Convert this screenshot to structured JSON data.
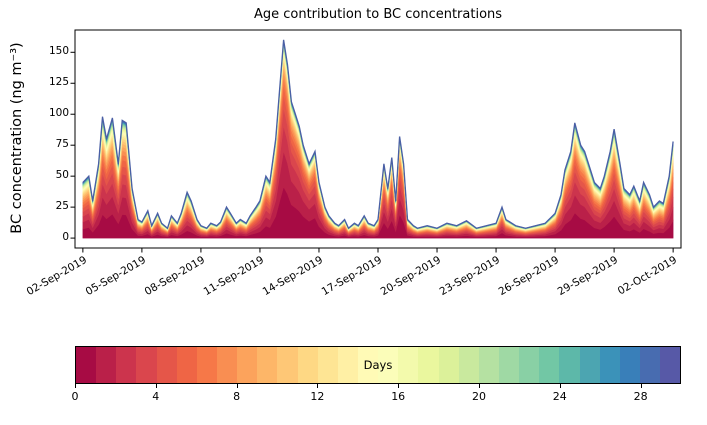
{
  "figure": {
    "background": "#ffffff"
  },
  "chart_data": {
    "type": "area",
    "subtype": "stacked-area-by-age",
    "title": "Age contribution to BC concentrations",
    "xlabel": "",
    "ylabel": "BC concentration (ng m⁻³)",
    "grid": false,
    "legend": "colorbar",
    "ylim": [
      -8,
      168
    ],
    "xlim_days": [
      1.6,
      32.4
    ],
    "y_ticks": [
      0,
      25,
      50,
      75,
      100,
      125,
      150
    ],
    "x_tick_days": [
      2,
      5,
      8,
      11,
      14,
      17,
      20,
      23,
      26,
      29,
      32
    ],
    "x_tick_labels": [
      "02-Sep-2019",
      "05-Sep-2019",
      "08-Sep-2019",
      "11-Sep-2019",
      "14-Sep-2019",
      "17-Sep-2019",
      "20-Sep-2019",
      "23-Sep-2019",
      "26-Sep-2019",
      "29-Sep-2019",
      "02-Oct-2019"
    ],
    "stack_note": "Total BC concentration stacked by air-mass age in days (0 = freshest at bottom, ~30 = oldest at top); age share modeled from aged_fraction mixing of two exponential age profiles",
    "age_layers": 30,
    "age_profile": {
      "fresh_tau_days": 2.5,
      "aged_tau_days": 10
    },
    "palette_spectral": [
      "#9e0142",
      "#d53e4f",
      "#f46d43",
      "#fdae61",
      "#fee08b",
      "#ffffbf",
      "#e6f598",
      "#abdda4",
      "#66c2a5",
      "#3288bd",
      "#5e4fa2"
    ],
    "outline_color": "#4a5fa5",
    "axis_color": "#000000",
    "t_days_september": [
      2.0,
      2.3,
      2.5,
      2.8,
      3.0,
      3.2,
      3.5,
      3.8,
      4.0,
      4.2,
      4.5,
      4.8,
      5.0,
      5.3,
      5.5,
      5.8,
      6.0,
      6.3,
      6.5,
      6.8,
      7.0,
      7.3,
      7.5,
      7.8,
      8.0,
      8.3,
      8.5,
      8.8,
      9.0,
      9.3,
      9.5,
      9.8,
      10.0,
      10.3,
      10.5,
      10.8,
      11.0,
      11.3,
      11.5,
      11.8,
      12.0,
      12.2,
      12.4,
      12.6,
      12.8,
      13.0,
      13.2,
      13.5,
      13.8,
      14.0,
      14.3,
      14.5,
      14.8,
      15.0,
      15.3,
      15.5,
      15.8,
      16.0,
      16.3,
      16.5,
      16.8,
      17.0,
      17.3,
      17.5,
      17.7,
      17.9,
      18.1,
      18.3,
      18.5,
      18.8,
      19.0,
      19.5,
      20.0,
      20.5,
      21.0,
      21.5,
      22.0,
      22.5,
      23.0,
      23.3,
      23.5,
      24.0,
      24.5,
      25.0,
      25.5,
      26.0,
      26.3,
      26.5,
      26.8,
      27.0,
      27.3,
      27.5,
      27.8,
      28.0,
      28.3,
      28.5,
      28.8,
      29.0,
      29.3,
      29.5,
      29.8,
      30.0,
      30.3,
      30.5,
      30.8,
      31.0,
      31.3,
      31.5,
      31.8,
      32.0
    ],
    "total_ng_m3": [
      45,
      50,
      30,
      60,
      98,
      80,
      97,
      60,
      95,
      93,
      40,
      15,
      13,
      22,
      10,
      20,
      12,
      8,
      18,
      12,
      20,
      37,
      30,
      15,
      10,
      8,
      12,
      10,
      13,
      25,
      20,
      12,
      15,
      12,
      18,
      25,
      30,
      50,
      45,
      80,
      120,
      160,
      140,
      110,
      100,
      90,
      75,
      60,
      70,
      45,
      25,
      18,
      12,
      10,
      15,
      8,
      12,
      10,
      18,
      12,
      10,
      15,
      60,
      40,
      65,
      30,
      82,
      60,
      15,
      10,
      8,
      10,
      8,
      12,
      10,
      14,
      8,
      10,
      12,
      25,
      15,
      10,
      8,
      10,
      12,
      20,
      35,
      55,
      70,
      93,
      75,
      70,
      55,
      45,
      40,
      50,
      70,
      88,
      60,
      40,
      35,
      42,
      30,
      45,
      35,
      25,
      30,
      28,
      50,
      78
    ],
    "aged_fraction": [
      0.45,
      0.4,
      0.45,
      0.35,
      0.3,
      0.3,
      0.28,
      0.3,
      0.28,
      0.28,
      0.35,
      0.55,
      0.55,
      0.5,
      0.6,
      0.5,
      0.55,
      0.6,
      0.5,
      0.55,
      0.5,
      0.45,
      0.45,
      0.55,
      0.6,
      0.6,
      0.55,
      0.6,
      0.55,
      0.45,
      0.5,
      0.55,
      0.5,
      0.55,
      0.5,
      0.45,
      0.4,
      0.3,
      0.32,
      0.22,
      0.15,
      0.12,
      0.13,
      0.15,
      0.15,
      0.16,
      0.18,
      0.2,
      0.18,
      0.25,
      0.35,
      0.45,
      0.55,
      0.6,
      0.5,
      0.6,
      0.55,
      0.6,
      0.5,
      0.55,
      0.6,
      0.5,
      0.25,
      0.3,
      0.22,
      0.35,
      0.18,
      0.22,
      0.5,
      0.6,
      0.65,
      0.6,
      0.65,
      0.55,
      0.6,
      0.55,
      0.65,
      0.6,
      0.55,
      0.4,
      0.5,
      0.6,
      0.65,
      0.6,
      0.55,
      0.45,
      0.35,
      0.28,
      0.25,
      0.22,
      0.25,
      0.25,
      0.3,
      0.35,
      0.38,
      0.35,
      0.3,
      0.28,
      0.35,
      0.4,
      0.45,
      0.4,
      0.5,
      0.42,
      0.48,
      0.55,
      0.5,
      0.52,
      0.4,
      0.35
    ],
    "colorbar": {
      "label": "Days",
      "min": 0,
      "max": 30,
      "ticks": [
        0,
        4,
        8,
        12,
        16,
        20,
        24,
        28
      ],
      "cells": 30
    }
  }
}
